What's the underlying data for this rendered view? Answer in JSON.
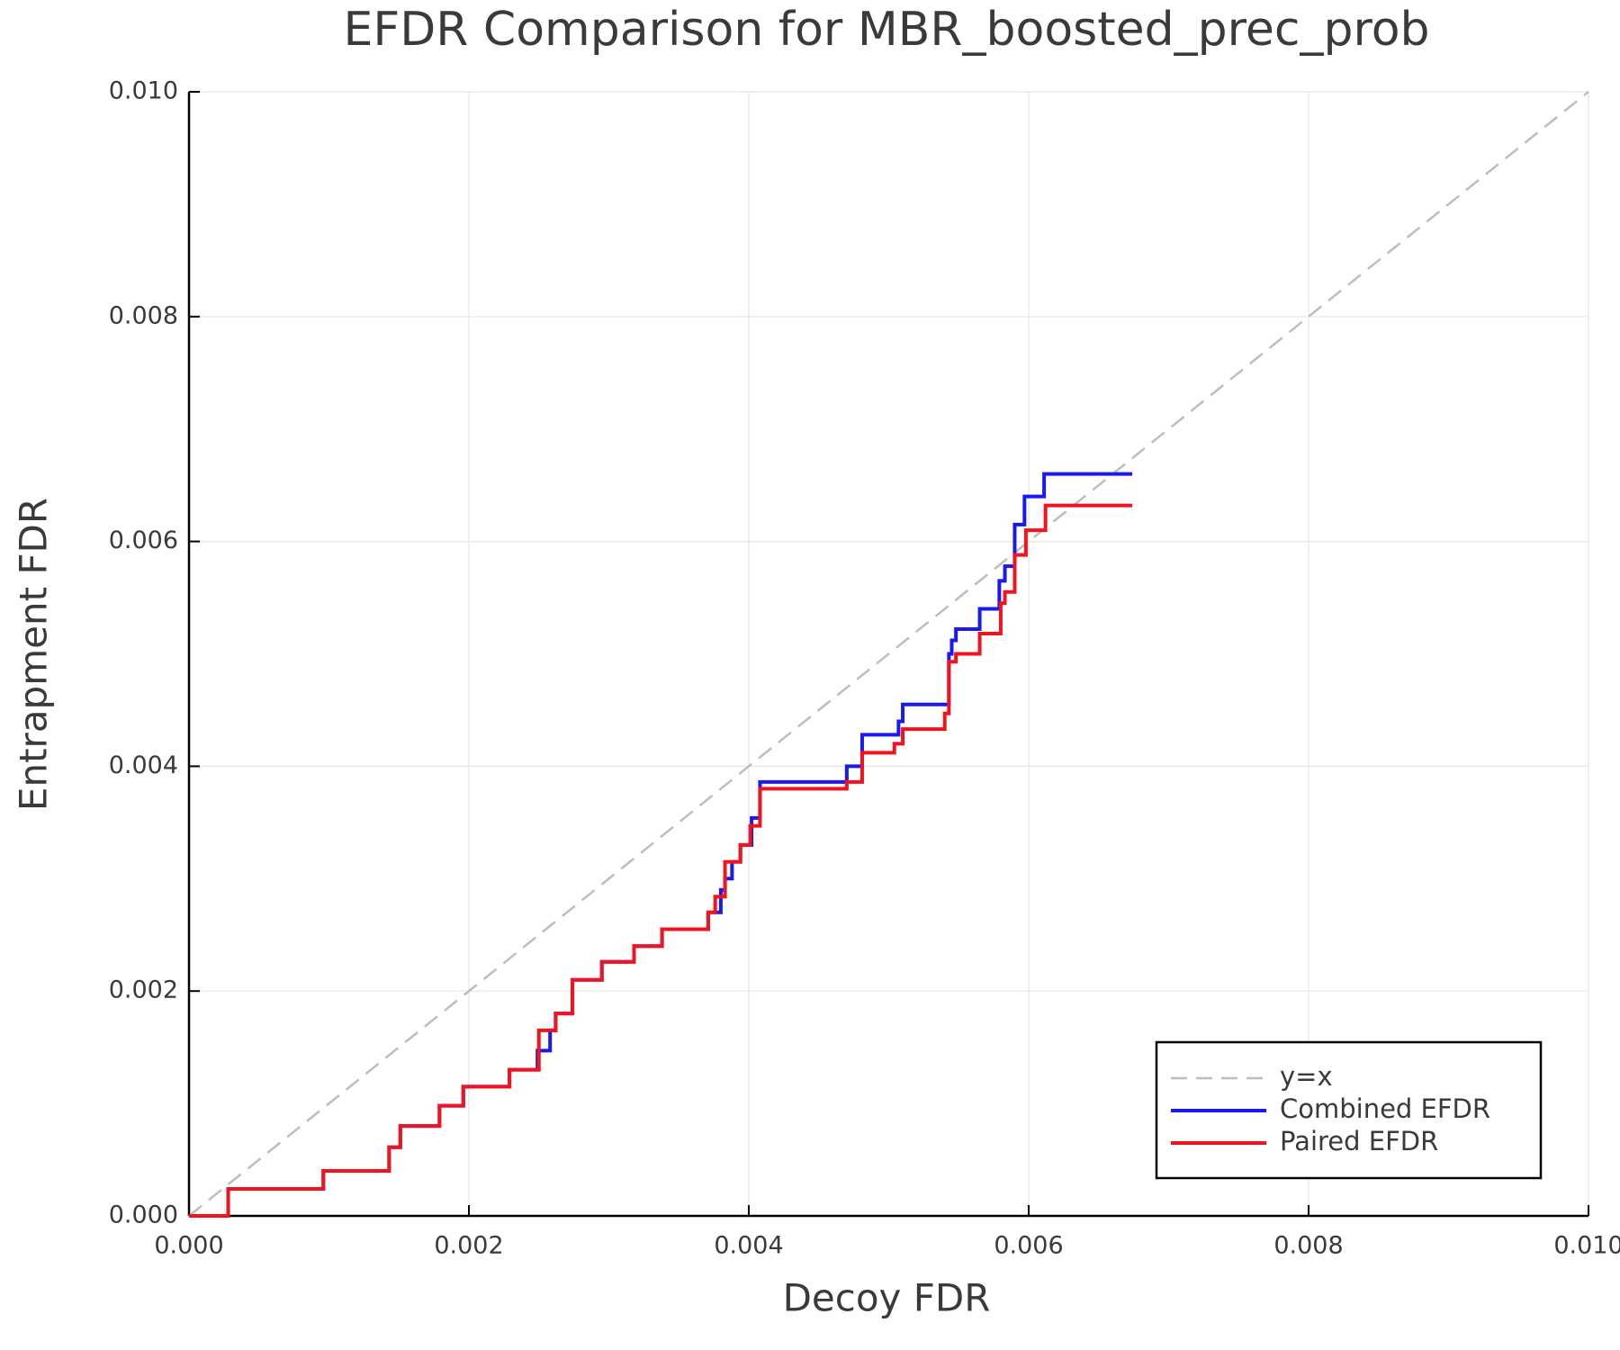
{
  "chart_data": {
    "type": "line",
    "title": "EFDR Comparison for MBR_boosted_prec_prob",
    "x_label": "Decoy FDR",
    "y_label": "Entrapment FDR",
    "xlim": [
      0,
      0.01
    ],
    "ylim": [
      0,
      0.01
    ],
    "xticks": [
      {
        "value": 0,
        "label": "0.000"
      },
      {
        "value": 0.002,
        "label": "0.002"
      },
      {
        "value": 0.004,
        "label": "0.004"
      },
      {
        "value": 0.006,
        "label": "0.006"
      },
      {
        "value": 0.008,
        "label": "0.008"
      },
      {
        "value": 0.01,
        "label": "0.010"
      }
    ],
    "yticks": [
      {
        "value": 0,
        "label": "0.000"
      },
      {
        "value": 0.002,
        "label": "0.002"
      },
      {
        "value": 0.004,
        "label": "0.004"
      },
      {
        "value": 0.006,
        "label": "0.006"
      },
      {
        "value": 0.008,
        "label": "0.008"
      },
      {
        "value": 0.01,
        "label": "0.010"
      }
    ],
    "grid": true,
    "legend": "lower right",
    "series": [
      {
        "name": "y=x",
        "color": "#bdbdbd",
        "dashed": true,
        "x": [
          0,
          0.01
        ],
        "y": [
          0,
          0.01
        ]
      },
      {
        "name": "Combined EFDR",
        "color": "#1a1af0",
        "dashed": false,
        "x": [
          0,
          0.00028,
          0.00028,
          0.00096,
          0.00096,
          0.00143,
          0.00143,
          0.00151,
          0.00151,
          0.00179,
          0.00179,
          0.00196,
          0.00196,
          0.00229,
          0.00229,
          0.00249,
          0.00249,
          0.00258,
          0.00258,
          0.00262,
          0.00262,
          0.00274,
          0.00274,
          0.00295,
          0.00295,
          0.00318,
          0.00318,
          0.00338,
          0.00338,
          0.00371,
          0.00371,
          0.0038,
          0.0038,
          0.00383,
          0.00383,
          0.00388,
          0.00388,
          0.00394,
          0.00394,
          0.00402,
          0.00402,
          0.00408,
          0.00408,
          0.0047,
          0.0047,
          0.00481,
          0.00481,
          0.00507,
          0.00507,
          0.0051,
          0.0051,
          0.00543,
          0.00543,
          0.00545,
          0.00545,
          0.00548,
          0.00548,
          0.00565,
          0.00565,
          0.00579,
          0.00579,
          0.00583,
          0.00583,
          0.0059,
          0.0059,
          0.00597,
          0.00597,
          0.00611,
          0.00611,
          0.00674
        ],
        "y": [
          0,
          0,
          0.00024,
          0.00024,
          0.0004,
          0.0004,
          0.00061,
          0.00061,
          0.0008,
          0.0008,
          0.00098,
          0.00098,
          0.00115,
          0.00115,
          0.0013,
          0.0013,
          0.00147,
          0.00147,
          0.00165,
          0.00165,
          0.0018,
          0.0018,
          0.0021,
          0.0021,
          0.00226,
          0.00226,
          0.0024,
          0.0024,
          0.00255,
          0.00255,
          0.0027,
          0.0027,
          0.0029,
          0.0029,
          0.003,
          0.003,
          0.00315,
          0.00315,
          0.0033,
          0.0033,
          0.00354,
          0.00354,
          0.00386,
          0.00386,
          0.004,
          0.004,
          0.00428,
          0.00428,
          0.0044,
          0.0044,
          0.00455,
          0.00455,
          0.005,
          0.005,
          0.00512,
          0.00512,
          0.00522,
          0.00522,
          0.0054,
          0.0054,
          0.00565,
          0.00565,
          0.00578,
          0.00578,
          0.00615,
          0.00615,
          0.0064,
          0.0064,
          0.0066,
          0.0066
        ]
      },
      {
        "name": "Paired EFDR",
        "color": "#f0141e",
        "dashed": false,
        "x": [
          0,
          0.00028,
          0.00028,
          0.00096,
          0.00096,
          0.00143,
          0.00143,
          0.00151,
          0.00151,
          0.00179,
          0.00179,
          0.00196,
          0.00196,
          0.00229,
          0.00229,
          0.0025,
          0.0025,
          0.00262,
          0.00262,
          0.00274,
          0.00274,
          0.00295,
          0.00295,
          0.00318,
          0.00318,
          0.00338,
          0.00338,
          0.00371,
          0.00371,
          0.00376,
          0.00376,
          0.00383,
          0.00383,
          0.00394,
          0.00394,
          0.00401,
          0.00401,
          0.00408,
          0.00408,
          0.0047,
          0.0047,
          0.00481,
          0.00481,
          0.00504,
          0.00504,
          0.0051,
          0.0051,
          0.0054,
          0.0054,
          0.00543,
          0.00543,
          0.00548,
          0.00548,
          0.00565,
          0.00565,
          0.0058,
          0.0058,
          0.00583,
          0.00583,
          0.0059,
          0.0059,
          0.00598,
          0.00598,
          0.00612,
          0.00612,
          0.00674
        ],
        "y": [
          0,
          0,
          0.00024,
          0.00024,
          0.0004,
          0.0004,
          0.00061,
          0.00061,
          0.0008,
          0.0008,
          0.00098,
          0.00098,
          0.00115,
          0.00115,
          0.0013,
          0.0013,
          0.00165,
          0.00165,
          0.0018,
          0.0018,
          0.0021,
          0.0021,
          0.00226,
          0.00226,
          0.0024,
          0.0024,
          0.00255,
          0.00255,
          0.0027,
          0.0027,
          0.00284,
          0.00284,
          0.00315,
          0.00315,
          0.0033,
          0.0033,
          0.00347,
          0.00347,
          0.0038,
          0.0038,
          0.00386,
          0.00386,
          0.00412,
          0.00412,
          0.0042,
          0.0042,
          0.00433,
          0.00433,
          0.00447,
          0.00447,
          0.00493,
          0.00493,
          0.005,
          0.005,
          0.00518,
          0.00518,
          0.00545,
          0.00545,
          0.00555,
          0.00555,
          0.00588,
          0.00588,
          0.0061,
          0.0061,
          0.00632,
          0.00632
        ]
      }
    ]
  }
}
